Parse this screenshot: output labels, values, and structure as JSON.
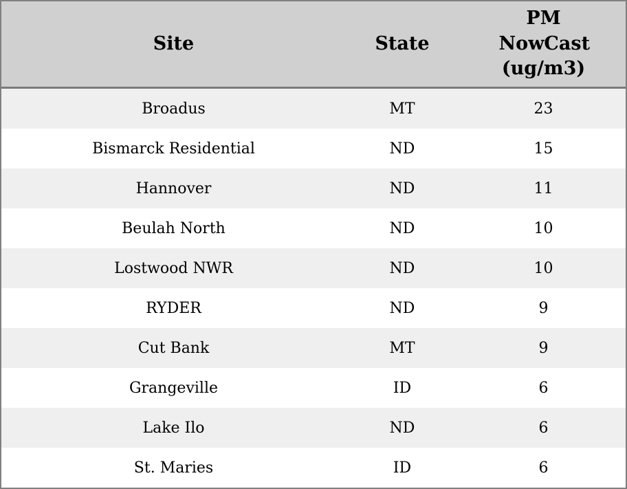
{
  "table": {
    "columns": [
      {
        "label": "Site"
      },
      {
        "label": "State"
      },
      {
        "label": "PM NowCast (ug/m3)"
      }
    ],
    "rows": [
      {
        "site": "Broadus",
        "state": "MT",
        "pm_nowcast": "23"
      },
      {
        "site": "Bismarck Residential",
        "state": "ND",
        "pm_nowcast": "15"
      },
      {
        "site": "Hannover",
        "state": "ND",
        "pm_nowcast": "11"
      },
      {
        "site": "Beulah North",
        "state": "ND",
        "pm_nowcast": "10"
      },
      {
        "site": "Lostwood NWR",
        "state": "ND",
        "pm_nowcast": "10"
      },
      {
        "site": "RYDER",
        "state": "ND",
        "pm_nowcast": "9"
      },
      {
        "site": "Cut Bank",
        "state": "MT",
        "pm_nowcast": "9"
      },
      {
        "site": "Grangeville",
        "state": "ID",
        "pm_nowcast": "6"
      },
      {
        "site": "Lake Ilo",
        "state": "ND",
        "pm_nowcast": "6"
      },
      {
        "site": "St. Maries",
        "state": "ID",
        "pm_nowcast": "6"
      }
    ]
  },
  "colors": {
    "header_background": "#d0d0d0",
    "row_stripe": "#efefef",
    "row_plain": "#ffffff",
    "border": "#808080",
    "text": "#000000"
  }
}
